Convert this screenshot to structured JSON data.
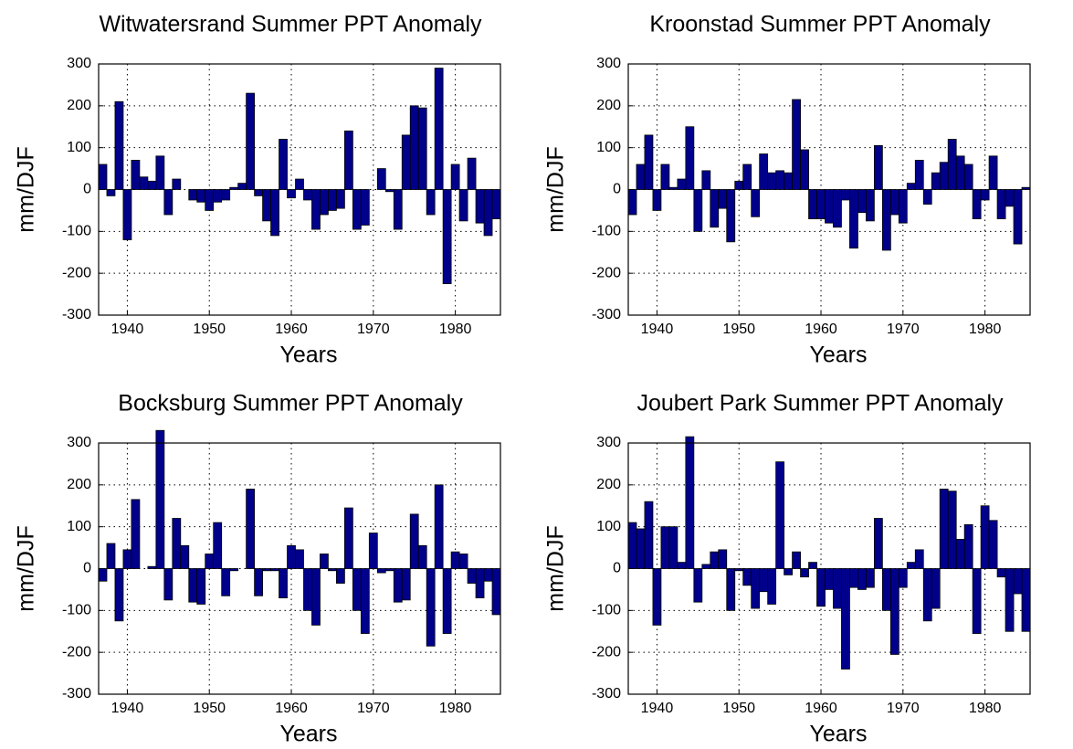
{
  "chart_data": [
    {
      "type": "bar",
      "title": "Witwatersrand Summer PPT Anomaly",
      "xlabel": "Years",
      "ylabel": "mm/DJF",
      "x": [
        1937,
        1938,
        1939,
        1940,
        1941,
        1942,
        1943,
        1944,
        1945,
        1946,
        1947,
        1948,
        1949,
        1950,
        1951,
        1952,
        1953,
        1954,
        1955,
        1956,
        1957,
        1958,
        1959,
        1960,
        1961,
        1962,
        1963,
        1964,
        1965,
        1966,
        1967,
        1968,
        1969,
        1970,
        1971,
        1972,
        1973,
        1974,
        1975,
        1976,
        1977,
        1978,
        1979,
        1980,
        1981,
        1982,
        1983,
        1984,
        1985
      ],
      "values": [
        60,
        -15,
        210,
        -120,
        70,
        30,
        20,
        80,
        -60,
        25,
        0,
        -25,
        -30,
        -50,
        -30,
        -25,
        5,
        15,
        230,
        -15,
        -75,
        -110,
        120,
        -20,
        25,
        -25,
        -95,
        -60,
        -50,
        -45,
        140,
        -95,
        -85,
        0,
        50,
        -5,
        -95,
        130,
        200,
        195,
        -60,
        290,
        -225,
        60,
        -75,
        75,
        -80,
        -110,
        -70
      ],
      "color": "#00008b",
      "xlim": [
        1936.5,
        1985.5
      ],
      "ylim": [
        -300,
        300
      ],
      "xticks": [
        1940,
        1950,
        1960,
        1970,
        1980
      ],
      "yticks": [
        -300,
        -200,
        -100,
        0,
        100,
        200,
        300
      ],
      "grid": true
    },
    {
      "type": "bar",
      "title": "Kroonstad Summer PPT Anomaly",
      "xlabel": "Years",
      "ylabel": "mm/DJF",
      "x": [
        1937,
        1938,
        1939,
        1940,
        1941,
        1942,
        1943,
        1944,
        1945,
        1946,
        1947,
        1948,
        1949,
        1950,
        1951,
        1952,
        1953,
        1954,
        1955,
        1956,
        1957,
        1958,
        1959,
        1960,
        1961,
        1962,
        1963,
        1964,
        1965,
        1966,
        1967,
        1968,
        1969,
        1970,
        1971,
        1972,
        1973,
        1974,
        1975,
        1976,
        1977,
        1978,
        1979,
        1980,
        1981,
        1982,
        1983,
        1984,
        1985
      ],
      "values": [
        -60,
        60,
        130,
        -50,
        60,
        5,
        25,
        150,
        -100,
        45,
        -90,
        -45,
        -125,
        20,
        60,
        -65,
        85,
        40,
        45,
        40,
        215,
        95,
        -70,
        -70,
        -80,
        -90,
        -25,
        -140,
        -55,
        -75,
        105,
        -145,
        -60,
        -80,
        15,
        70,
        -35,
        40,
        65,
        120,
        80,
        60,
        -70,
        -25,
        80,
        -70,
        -40,
        -130,
        5
      ],
      "color": "#00008b",
      "xlim": [
        1936.5,
        1985.5
      ],
      "ylim": [
        -300,
        300
      ],
      "xticks": [
        1940,
        1950,
        1960,
        1970,
        1980
      ],
      "yticks": [
        -300,
        -200,
        -100,
        0,
        100,
        200,
        300
      ],
      "grid": true
    },
    {
      "type": "bar",
      "title": "Bocksburg Summer PPT Anomaly",
      "xlabel": "Years",
      "ylabel": "mm/DJF",
      "x": [
        1937,
        1938,
        1939,
        1940,
        1941,
        1942,
        1943,
        1944,
        1945,
        1946,
        1947,
        1948,
        1949,
        1950,
        1951,
        1952,
        1953,
        1954,
        1955,
        1956,
        1957,
        1958,
        1959,
        1960,
        1961,
        1962,
        1963,
        1964,
        1965,
        1966,
        1967,
        1968,
        1969,
        1970,
        1971,
        1972,
        1973,
        1974,
        1975,
        1976,
        1977,
        1978,
        1979,
        1980,
        1981,
        1982,
        1983,
        1984,
        1985
      ],
      "values": [
        -30,
        60,
        -125,
        45,
        165,
        0,
        5,
        330,
        -75,
        120,
        55,
        -80,
        -85,
        35,
        110,
        -65,
        -5,
        0,
        190,
        -65,
        -5,
        -5,
        -70,
        55,
        45,
        -100,
        -135,
        35,
        -5,
        -35,
        145,
        -100,
        -155,
        85,
        -10,
        -5,
        -80,
        -75,
        130,
        55,
        -185,
        200,
        -155,
        40,
        35,
        -35,
        -70,
        -30,
        -110
      ],
      "color": "#00008b",
      "xlim": [
        1936.5,
        1985.5
      ],
      "ylim": [
        -300,
        300
      ],
      "xticks": [
        1940,
        1950,
        1960,
        1970,
        1980
      ],
      "yticks": [
        -300,
        -200,
        -100,
        0,
        100,
        200,
        300
      ],
      "grid": true
    },
    {
      "type": "bar",
      "title": "Joubert Park Summer PPT Anomaly",
      "xlabel": "Years",
      "ylabel": "mm/DJF",
      "x": [
        1937,
        1938,
        1939,
        1940,
        1941,
        1942,
        1943,
        1944,
        1945,
        1946,
        1947,
        1948,
        1949,
        1950,
        1951,
        1952,
        1953,
        1954,
        1955,
        1956,
        1957,
        1958,
        1959,
        1960,
        1961,
        1962,
        1963,
        1964,
        1965,
        1966,
        1967,
        1968,
        1969,
        1970,
        1971,
        1972,
        1973,
        1974,
        1975,
        1976,
        1977,
        1978,
        1979,
        1980,
        1981,
        1982,
        1983,
        1984,
        1985
      ],
      "values": [
        110,
        95,
        160,
        -135,
        100,
        100,
        15,
        315,
        -80,
        10,
        40,
        45,
        -100,
        -5,
        -40,
        -95,
        -55,
        -85,
        255,
        -15,
        40,
        -20,
        15,
        -90,
        -50,
        -95,
        -240,
        -45,
        -50,
        -45,
        120,
        -100,
        -205,
        -45,
        15,
        45,
        -125,
        -95,
        190,
        185,
        70,
        105,
        -155,
        150,
        115,
        -20,
        -150,
        -60,
        -150
      ],
      "color": "#00008b",
      "xlim": [
        1936.5,
        1985.5
      ],
      "ylim": [
        -300,
        300
      ],
      "xticks": [
        1940,
        1950,
        1960,
        1970,
        1980
      ],
      "yticks": [
        -300,
        -200,
        -100,
        0,
        100,
        200,
        300
      ],
      "grid": true
    }
  ]
}
